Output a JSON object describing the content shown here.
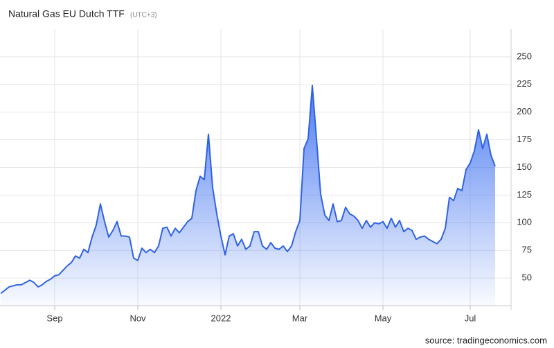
{
  "chart_data": {
    "type": "area",
    "title": "Natural Gas EU Dutch TTF",
    "subtitle": "(UTC+3)",
    "source": "source: tradingeconomics.com",
    "categories": [
      null,
      null,
      null,
      null,
      null,
      null,
      null,
      null,
      null,
      null,
      null,
      null,
      null,
      "Sep",
      null,
      null,
      null,
      null,
      null,
      null,
      null,
      null,
      null,
      null,
      null,
      null,
      null,
      null,
      null,
      null,
      null,
      null,
      null,
      "Nov",
      null,
      null,
      null,
      null,
      null,
      null,
      null,
      null,
      null,
      null,
      null,
      null,
      null,
      null,
      null,
      null,
      null,
      null,
      null,
      "2022",
      null,
      null,
      null,
      null,
      null,
      null,
      null,
      null,
      null,
      null,
      null,
      null,
      null,
      null,
      null,
      null,
      null,
      null,
      "Mar",
      null,
      null,
      null,
      null,
      null,
      null,
      null,
      null,
      null,
      null,
      null,
      null,
      null,
      null,
      null,
      null,
      null,
      null,
      null,
      "May",
      null,
      null,
      null,
      null,
      null,
      null,
      null,
      null,
      null,
      null,
      null,
      null,
      null,
      null,
      null,
      null,
      null,
      null,
      null,
      null,
      "Jul",
      null,
      null,
      null,
      null,
      null,
      null
    ],
    "values": [
      36,
      39,
      42,
      43,
      44,
      44,
      46,
      48,
      46,
      42,
      44,
      47,
      49,
      52,
      53,
      57,
      61,
      64,
      70,
      68,
      76,
      73,
      87,
      98,
      117,
      101,
      87,
      93,
      101,
      88,
      88,
      87,
      68,
      66,
      77,
      73,
      76,
      73,
      79,
      95,
      96,
      88,
      95,
      91,
      96,
      101,
      104,
      129,
      142,
      139,
      180,
      132,
      108,
      88,
      71,
      88,
      90,
      79,
      85,
      76,
      79,
      92,
      92,
      79,
      76,
      82,
      77,
      76,
      79,
      74,
      79,
      92,
      102,
      167,
      176,
      224,
      176,
      126,
      107,
      102,
      117,
      101,
      102,
      114,
      108,
      106,
      102,
      95,
      102,
      96,
      100,
      99,
      101,
      95,
      104,
      96,
      102,
      92,
      95,
      93,
      85,
      87,
      88,
      85,
      83,
      81,
      85,
      95,
      123,
      120,
      131,
      129,
      148,
      154,
      165,
      184,
      167,
      180,
      161,
      151
    ],
    "color": "#2f62e3",
    "ylim": [
      25,
      275
    ],
    "yticks": [
      50,
      75,
      100,
      125,
      150,
      175,
      200,
      225,
      250
    ],
    "grid": true
  }
}
